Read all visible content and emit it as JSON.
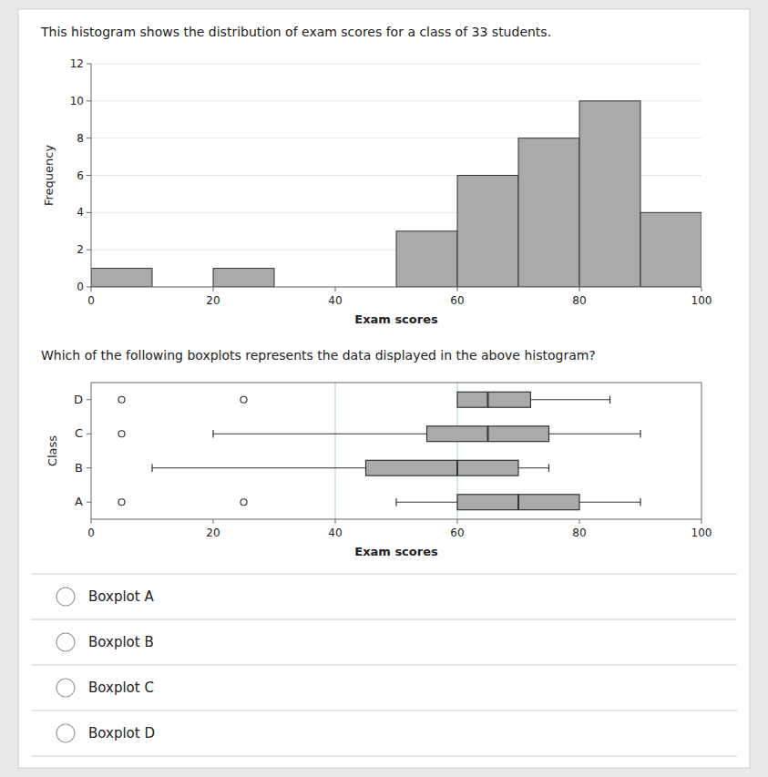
{
  "chart_data": [
    {
      "type": "histogram",
      "title": "This histogram shows the distribution of exam scores for a class of 33 students.",
      "xlabel": "Exam scores",
      "ylabel": "Frequency",
      "bins": [
        0,
        10,
        20,
        30,
        40,
        50,
        60,
        70,
        80,
        90,
        100
      ],
      "values": [
        1,
        0,
        1,
        0,
        0,
        3,
        6,
        8,
        10,
        4
      ],
      "color": "#aaaaaa",
      "xlim": [
        0,
        100
      ],
      "xticks": [
        0,
        20,
        40,
        60,
        80,
        100
      ],
      "ylim": [
        0,
        12
      ],
      "yticks": [
        0,
        2,
        4,
        6,
        8,
        10,
        12
      ]
    },
    {
      "type": "boxplot",
      "title": "Which of the following boxplots represents the data displayed in the above histogram?",
      "orientation": "horizontal",
      "xlabel": "Exam scores",
      "ylabel": "Class",
      "categories": [
        "A",
        "B",
        "C",
        "D"
      ],
      "boxes": [
        {
          "whislo": 50,
          "q1": 60,
          "med": 70,
          "q3": 80,
          "whishi": 90,
          "fliers": [
            5,
            25
          ]
        },
        {
          "whislo": 10,
          "q1": 45,
          "med": 60,
          "q3": 70,
          "whishi": 75,
          "fliers": []
        },
        {
          "whislo": 20,
          "q1": 55,
          "med": 65,
          "q3": 75,
          "whishi": 90,
          "fliers": [
            5
          ]
        },
        {
          "whislo": 65,
          "q1": 60,
          "med": 65,
          "q3": 72,
          "whishi": 85,
          "fliers": [
            5,
            25
          ]
        }
      ],
      "color": "#aaaaaa",
      "reference_lines": {
        "values": [
          40,
          60
        ],
        "color": "#add8e6"
      },
      "xlim": [
        0,
        100
      ],
      "xticks": [
        0,
        20,
        40,
        60,
        80,
        100
      ],
      "annotations": [
        "Boxplot A",
        "Boxplot B",
        "Boxplot C",
        "Boxplot D"
      ]
    }
  ]
}
